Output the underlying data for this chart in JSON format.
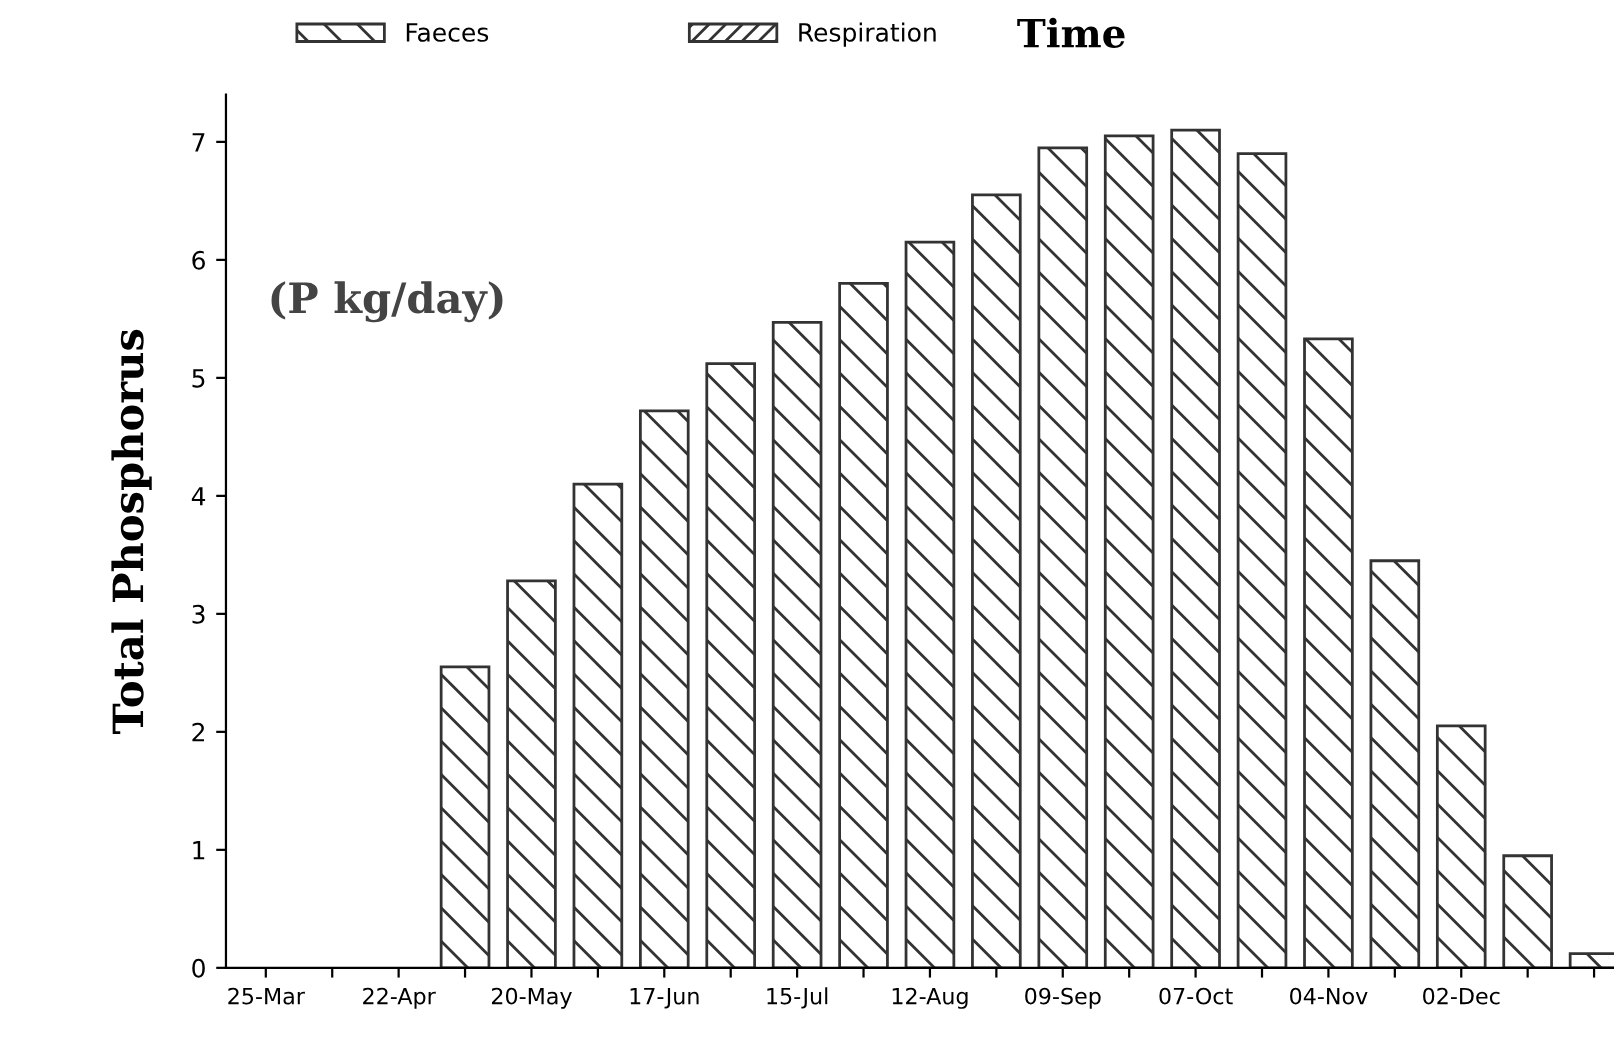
{
  "chart_data": {
    "type": "bar",
    "title": "Time",
    "ylabel": "Total Phosphorus",
    "annotations": [
      "(P kg/day)"
    ],
    "categories": [
      "25-Mar",
      null,
      "22-Apr",
      null,
      "20-May",
      null,
      "17-Jun",
      null,
      "15-Jul",
      null,
      "12-Aug",
      null,
      "09-Sep",
      null,
      "07-Oct",
      null,
      "04-Nov",
      null,
      "02-Dec",
      null,
      null
    ],
    "series": [
      {
        "name": "Faeces",
        "color": "#333333",
        "values": [
          null,
          null,
          null,
          2.55,
          3.28,
          4.1,
          4.72,
          5.12,
          5.47,
          5.8,
          6.15,
          6.55,
          6.95,
          7.05,
          7.1,
          6.9,
          5.33,
          3.45,
          2.05,
          0.95,
          0.12
        ]
      },
      {
        "name": "Respiration",
        "color": "#333333",
        "values": [
          null,
          null,
          null,
          null,
          null,
          null,
          null,
          null,
          null,
          null,
          null,
          null,
          null,
          null,
          null,
          null,
          null,
          null,
          null,
          null,
          null
        ]
      }
    ],
    "ylim": [
      0,
      7.4
    ],
    "yticks": [
      0,
      1,
      2,
      3,
      4,
      5,
      6,
      7
    ],
    "grid": false,
    "legend": "top"
  }
}
